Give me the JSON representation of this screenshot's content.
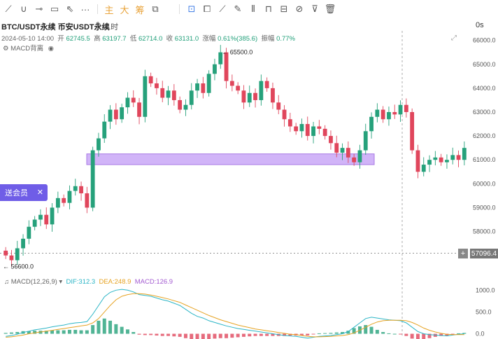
{
  "toolbar": {
    "tools": [
      {
        "name": "trend-line-icon",
        "glyph": "⟋"
      },
      {
        "name": "curve-icon",
        "glyph": "∪"
      },
      {
        "name": "horizontal-line-icon",
        "glyph": "⊸"
      },
      {
        "name": "rectangle-icon",
        "glyph": "▭"
      },
      {
        "name": "path-icon",
        "glyph": "⇖"
      },
      {
        "name": "more-icon",
        "glyph": "···"
      }
    ],
    "main_label": "主",
    "big_label": "大",
    "chip_label": "筹",
    "right_tools": [
      {
        "name": "indicator-icon",
        "glyph": "⧉"
      },
      {
        "name": "compare-icon",
        "glyph": "⊡"
      },
      {
        "name": "clone-icon",
        "glyph": "⧠"
      },
      {
        "name": "ruler-icon",
        "glyph": "⟋"
      },
      {
        "name": "brush-icon",
        "glyph": "✎"
      },
      {
        "name": "candlestick-icon",
        "glyph": "⫴"
      },
      {
        "name": "lock-icon",
        "glyph": "⊓"
      },
      {
        "name": "text-icon",
        "glyph": "⊟"
      },
      {
        "name": "magnet-icon",
        "glyph": "⊘"
      },
      {
        "name": "filter-icon",
        "glyph": "⊽"
      },
      {
        "name": "trash-icon",
        "glyph": "🗑"
      }
    ]
  },
  "header": {
    "symbol": "BTC/USDT永续 币安USDT永续",
    "interval": "1时",
    "seconds": "0s"
  },
  "ohlc": {
    "datetime": "2024-05-10 14:00",
    "open_label": "开",
    "open": "62745.5",
    "high_label": "高",
    "high": "63197.7",
    "low_label": "低",
    "low": "62714.0",
    "close_label": "收",
    "close": "63131.0",
    "change_label": "涨幅",
    "change": "0.61%(385.6)",
    "amp_label": "振幅",
    "amp": "0.77%"
  },
  "indicator": {
    "name": "MACD背离"
  },
  "promo": {
    "label": "送会员",
    "close": "✕"
  },
  "price_badge": "57096.4",
  "macd": {
    "label": "MACD(12,26,9)",
    "dif": "DIF:312.3",
    "dea": "DEA:248.9",
    "macd": "MACD:126.9"
  },
  "chart_data": [
    {
      "type": "candlestick",
      "title": "",
      "y_ticks": [
        58000,
        59000,
        60000,
        61000,
        62000,
        63000,
        64000,
        65000,
        66000
      ],
      "ylim": [
        56200,
        66400
      ],
      "annotations": [
        {
          "text": "← 65500.0",
          "value": 65500
        },
        {
          "text": "← 56600.0",
          "value": 56600
        }
      ],
      "zone": {
        "low": 60800,
        "high": 61250,
        "color": "#c9a7f7"
      },
      "current_price_line": 57096.4,
      "colors": {
        "up": "#26a17b",
        "down": "#e0465c"
      },
      "closes": [
        57000,
        56800,
        57300,
        57700,
        58200,
        58500,
        58700,
        58300,
        59000,
        59400,
        59200,
        59700,
        59900,
        59600,
        59000,
        61400,
        61900,
        62600,
        63100,
        62700,
        63200,
        63600,
        63400,
        62800,
        64500,
        64200,
        64000,
        63600,
        63900,
        63500,
        63100,
        63300,
        63900,
        64200,
        63800,
        64600,
        65000,
        65500,
        64300,
        64100,
        63900,
        63400,
        63800,
        63500,
        64300,
        64000,
        63400,
        63100,
        62700,
        62400,
        62200,
        62500,
        62000,
        62400,
        62300,
        62000,
        61700,
        61300,
        61500,
        61100,
        60900,
        61400,
        62200,
        62800,
        63100,
        62700,
        63000,
        62900,
        63300,
        63000,
        61400,
        60500,
        60800,
        61000,
        61100,
        60900,
        61000,
        61200,
        61000,
        61500
      ]
    },
    {
      "type": "bar",
      "title": "",
      "y_ticks": [
        0.0,
        500.0,
        1000.0
      ],
      "ylim": [
        -120,
        1150
      ],
      "series": [
        {
          "name": "DIF",
          "color": "#2bb5c6",
          "values": [
            -60,
            -40,
            -10,
            30,
            60,
            90,
            110,
            130,
            160,
            180,
            200,
            230,
            250,
            260,
            280,
            450,
            650,
            850,
            950,
            1000,
            1020,
            1000,
            960,
            900,
            880,
            860,
            820,
            780,
            750,
            700,
            650,
            560,
            470,
            400,
            360,
            300,
            260,
            220,
            180,
            150,
            120,
            100,
            80,
            60,
            40,
            20,
            0,
            -20,
            -40,
            -50,
            -60,
            -80,
            -100,
            -80,
            -60,
            -50,
            -40,
            -20,
            0,
            50,
            150,
            250,
            350,
            380,
            360,
            340,
            320,
            310,
            300,
            250,
            150,
            50,
            0,
            -20,
            -30,
            -40,
            -50,
            -30,
            -10,
            0
          ]
        },
        {
          "name": "DEA",
          "color": "#e6a323",
          "values": [
            -80,
            -70,
            -50,
            -30,
            0,
            20,
            40,
            60,
            80,
            100,
            120,
            140,
            160,
            180,
            200,
            250,
            350,
            500,
            650,
            780,
            860,
            900,
            920,
            920,
            910,
            890,
            860,
            830,
            800,
            760,
            720,
            660,
            600,
            540,
            480,
            420,
            370,
            320,
            280,
            240,
            200,
            170,
            140,
            110,
            90,
            70,
            50,
            30,
            10,
            -10,
            -20,
            -40,
            -60,
            -70,
            -70,
            -65,
            -60,
            -50,
            -40,
            -20,
            20,
            80,
            150,
            220,
            270,
            300,
            310,
            310,
            310,
            300,
            260,
            200,
            130,
            80,
            40,
            10,
            -10,
            -20,
            -20,
            -20
          ]
        },
        {
          "name": "MACD",
          "color": "#26a17b",
          "values": [
            20,
            30,
            40,
            60,
            60,
            70,
            70,
            70,
            80,
            80,
            80,
            90,
            90,
            80,
            80,
            200,
            300,
            350,
            300,
            220,
            160,
            100,
            40,
            -20,
            -30,
            -30,
            -40,
            -50,
            -50,
            -60,
            -70,
            -100,
            -130,
            -140,
            -120,
            -120,
            -110,
            -100,
            -100,
            -90,
            -80,
            -70,
            -60,
            -50,
            -50,
            -50,
            -50,
            -50,
            -50,
            -40,
            -40,
            -40,
            -40,
            -10,
            10,
            15,
            20,
            30,
            40,
            70,
            130,
            170,
            200,
            160,
            90,
            40,
            10,
            0,
            -10,
            -50,
            -110,
            -150,
            -130,
            -100,
            -70,
            -50,
            -40,
            -10,
            10,
            20
          ]
        }
      ]
    }
  ]
}
